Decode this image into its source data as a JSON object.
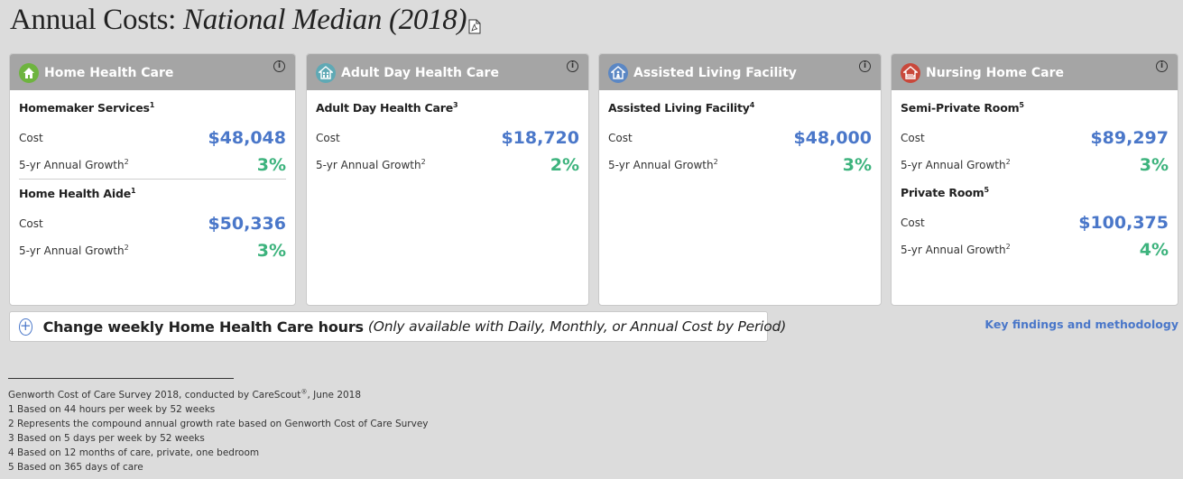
{
  "header": {
    "title_main": "Annual Costs:",
    "title_italic": "National Median (2018)"
  },
  "colors": {
    "cost": "#4a77c9",
    "growth": "#3db37d",
    "card_header": "#a5a5a5"
  },
  "cards": [
    {
      "category": "Home Health Care",
      "icon": "home-icon",
      "icon_color": "#6eb43f",
      "services": [
        {
          "name": "Homemaker Services",
          "note": "1",
          "cost_label": "Cost",
          "cost": "$48,048",
          "growth_label": "5-yr Annual Growth",
          "growth_note": "2",
          "growth": "3%"
        },
        {
          "name": "Home Health Aide",
          "note": "1",
          "cost_label": "Cost",
          "cost": "$50,336",
          "growth_label": "5-yr Annual Growth",
          "growth_note": "2",
          "growth": "3%"
        }
      ]
    },
    {
      "category": "Adult Day Health Care",
      "icon": "family-icon",
      "icon_color": "#5fa9b5",
      "services": [
        {
          "name": "Adult Day Health Care",
          "note": "3",
          "cost_label": "Cost",
          "cost": "$18,720",
          "growth_label": "5-yr Annual Growth",
          "growth_note": "2",
          "growth": "2%"
        }
      ]
    },
    {
      "category": "Assisted Living Facility",
      "icon": "assisted-living-icon",
      "icon_color": "#5b87c4",
      "services": [
        {
          "name": "Assisted Living Facility",
          "note": "4",
          "cost_label": "Cost",
          "cost": "$48,000",
          "growth_label": "5-yr Annual Growth",
          "growth_note": "2",
          "growth": "3%"
        }
      ]
    },
    {
      "category": "Nursing Home Care",
      "icon": "nursing-home-icon",
      "icon_color": "#c9483b",
      "services": [
        {
          "name": "Semi-Private Room",
          "note": "5",
          "cost_label": "Cost",
          "cost": "$89,297",
          "growth_label": "5-yr Annual Growth",
          "growth_note": "2",
          "growth": "3%"
        },
        {
          "name": "Private Room",
          "note": "5",
          "cost_label": "Cost",
          "cost": "$100,375",
          "growth_label": "5-yr Annual Growth",
          "growth_note": "2",
          "growth": "4%"
        }
      ]
    }
  ],
  "change_hours": {
    "label": "Change weekly Home Health Care hours",
    "note": "(Only available with Daily, Monthly, or Annual Cost by Period)"
  },
  "key_findings_link": "Key findings and methodology",
  "footnotes": {
    "source_pre": "Genworth Cost of Care Survey 2018, conducted by CareScout",
    "source_mark": "®",
    "source_post": ", June 2018",
    "items": [
      "1 Based on 44 hours per week by 52 weeks",
      "2 Represents the compound annual growth rate based on Genworth Cost of Care Survey",
      "3 Based on 5 days per week by 52 weeks",
      "4 Based on 12 months of care, private, one bedroom",
      "5 Based on 365 days of care"
    ]
  }
}
